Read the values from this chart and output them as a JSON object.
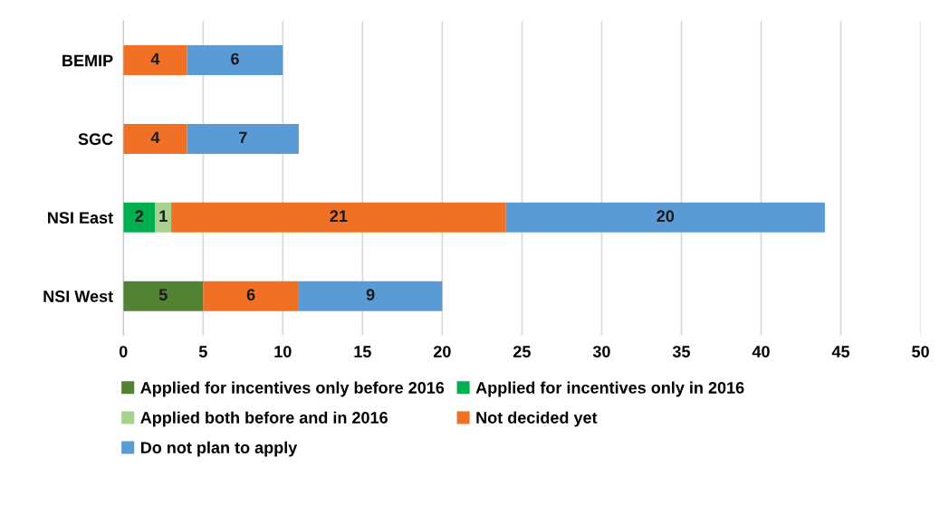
{
  "chart_data": {
    "type": "bar",
    "orientation": "horizontal",
    "stacked": true,
    "categories": [
      "BEMIP",
      "SGC",
      "NSI East",
      "NSI West"
    ],
    "series": [
      {
        "name": "Applied for incentives only before 2016",
        "color": "#548235",
        "values": [
          null,
          null,
          null,
          5
        ]
      },
      {
        "name": "Applied for incentives only in 2016",
        "color": "#00b050",
        "values": [
          null,
          null,
          2,
          null
        ]
      },
      {
        "name": "Applied both before and in 2016",
        "color": "#a9d18e",
        "values": [
          null,
          null,
          1,
          null
        ]
      },
      {
        "name": "Not decided yet",
        "color": "#f07025",
        "values": [
          4,
          4,
          21,
          6
        ]
      },
      {
        "name": "Do not plan to apply",
        "color": "#5b9bd5",
        "values": [
          6,
          7,
          20,
          9
        ]
      }
    ],
    "xlim": [
      0,
      50
    ],
    "xticks": [
      0,
      5,
      10,
      15,
      20,
      25,
      30,
      35,
      40,
      45,
      50
    ],
    "grid": "x",
    "legend": "bottom",
    "data_labels": true
  }
}
